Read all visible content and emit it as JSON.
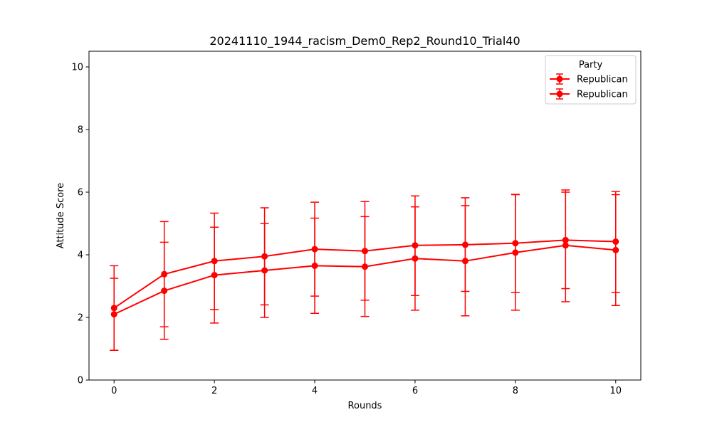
{
  "chart_data": {
    "type": "line",
    "title": "20241110_1944_racism_Dem0_Rep2_Round10_Trial40",
    "xlabel": "Rounds",
    "ylabel": "Attitude Score",
    "xlim": [
      -0.5,
      10.5
    ],
    "ylim": [
      0,
      10.5
    ],
    "xticks": [
      0,
      2,
      4,
      6,
      8,
      10
    ],
    "yticks": [
      0,
      2,
      4,
      6,
      8,
      10
    ],
    "grid": false,
    "legend": {
      "title": "Party",
      "placement": "top-right"
    },
    "x": [
      0,
      1,
      2,
      3,
      4,
      5,
      6,
      7,
      8,
      9,
      10
    ],
    "series": [
      {
        "name": "Republican",
        "color": "#ff0000",
        "values": [
          2.3,
          3.38,
          3.8,
          3.95,
          4.18,
          4.12,
          4.3,
          4.32,
          4.37,
          4.47,
          4.42
        ],
        "err_low": [
          0.95,
          1.7,
          2.25,
          2.4,
          2.68,
          2.55,
          2.7,
          2.83,
          2.8,
          2.92,
          2.8
        ],
        "err_high": [
          3.65,
          5.06,
          5.33,
          5.5,
          5.68,
          5.7,
          5.88,
          5.82,
          5.93,
          6.07,
          6.02
        ]
      },
      {
        "name": "Republican",
        "color": "#ff0000",
        "values": [
          2.1,
          2.85,
          3.35,
          3.5,
          3.65,
          3.62,
          3.88,
          3.8,
          4.07,
          4.3,
          4.15
        ],
        "err_low": [
          0.95,
          1.3,
          1.82,
          2.0,
          2.13,
          2.03,
          2.23,
          2.05,
          2.23,
          2.5,
          2.38
        ],
        "err_high": [
          3.25,
          4.4,
          4.88,
          5.0,
          5.17,
          5.22,
          5.53,
          5.57,
          5.92,
          6.0,
          5.92
        ]
      }
    ]
  }
}
